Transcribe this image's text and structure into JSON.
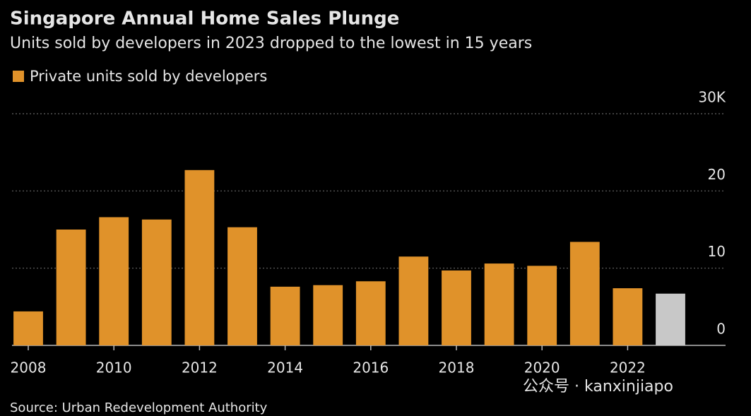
{
  "chart_data": {
    "type": "bar",
    "title": "Singapore Annual Home Sales Plunge",
    "subtitle": "Units sold by developers in 2023 dropped to the lowest in 15 years",
    "source": "Source: Urban Redevelopment Authority",
    "watermark": "公众号 · kanxinjiapo",
    "categories": [
      "2008",
      null,
      "2010",
      null,
      "2012",
      null,
      "2014",
      null,
      "2016",
      null,
      "2018",
      null,
      "2020",
      null,
      "2022",
      null
    ],
    "series": [
      {
        "name": "Private units sold by developers",
        "color": "#e0922a",
        "values": [
          4.4,
          15.0,
          16.6,
          16.3,
          22.7,
          15.3,
          7.6,
          7.8,
          8.3,
          11.5,
          9.7,
          10.6,
          10.3,
          13.4,
          7.4,
          6.7
        ],
        "colors": [
          "#e0922a",
          "#e0922a",
          "#e0922a",
          "#e0922a",
          "#e0922a",
          "#e0922a",
          "#e0922a",
          "#e0922a",
          "#e0922a",
          "#e0922a",
          "#e0922a",
          "#e0922a",
          "#e0922a",
          "#e0922a",
          "#e0922a",
          "#c8c8c8"
        ]
      }
    ],
    "ylim": [
      0,
      30
    ],
    "yticks": [
      0,
      10,
      20,
      {
        "value": 30,
        "label": "30K"
      }
    ],
    "grid": true
  }
}
